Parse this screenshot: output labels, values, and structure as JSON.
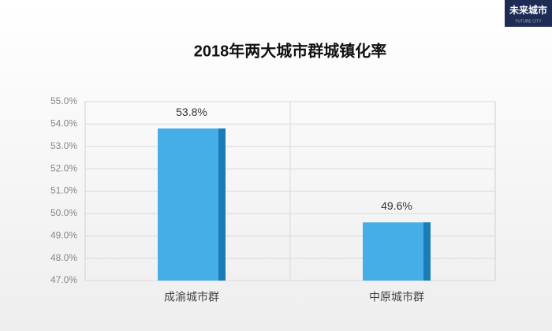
{
  "chart_data": {
    "type": "bar",
    "title": "2018年两大城市群城镇化率",
    "categories": [
      "成渝城市群",
      "中原城市群"
    ],
    "values": [
      53.8,
      49.6
    ],
    "value_labels": [
      "53.8%",
      "49.6%"
    ],
    "color": "#45aee6",
    "ylim": [
      47,
      55
    ],
    "yticks": [
      {
        "value": 47,
        "label": "47.0%"
      },
      {
        "value": 48,
        "label": "48.0%"
      },
      {
        "value": 49,
        "label": "49.0%"
      },
      {
        "value": 50,
        "label": "50.0%"
      },
      {
        "value": 51,
        "label": "51.0%"
      },
      {
        "value": 52,
        "label": "52.0%"
      },
      {
        "value": 53,
        "label": "53.0%"
      },
      {
        "value": 54,
        "label": "54.0%"
      },
      {
        "value": 55,
        "label": "55.0%"
      }
    ],
    "grid": true
  },
  "logo": {
    "text": "未来城市",
    "subtext": "FUTURE CITY"
  }
}
